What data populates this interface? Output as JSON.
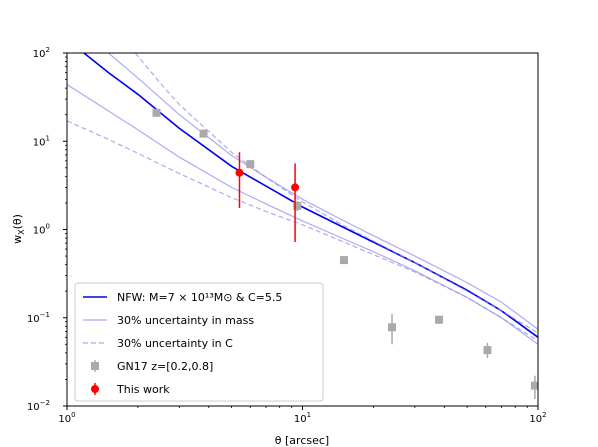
{
  "chart_data": {
    "type": "line",
    "scale": {
      "x": "log",
      "y": "log"
    },
    "xlabel": "θ [arcsec]",
    "ylabel": "w_X(θ)",
    "xlim": [
      1,
      100
    ],
    "ylim": [
      0.01,
      100
    ],
    "grid": false,
    "legend_position": "bottom-left",
    "x_ticks": [
      {
        "value": 1,
        "base": "10",
        "exp": "0"
      },
      {
        "value": 10,
        "base": "10",
        "exp": "1"
      },
      {
        "value": 100,
        "base": "10",
        "exp": "2"
      }
    ],
    "y_ticks": [
      {
        "value": 0.01,
        "base": "10",
        "exp": "−2"
      },
      {
        "value": 0.1,
        "base": "10",
        "exp": "−1"
      },
      {
        "value": 1,
        "base": "10",
        "exp": "0"
      },
      {
        "value": 10,
        "base": "10",
        "exp": "1"
      },
      {
        "value": 100,
        "base": "10",
        "exp": "2"
      }
    ],
    "series": [
      {
        "name": "NFW: M=7 × 10¹³M⊙ & C=5.5",
        "kind": "line",
        "color": "#0000ee",
        "style": "solid",
        "opacity": 1,
        "x": [
          1.18,
          1.5,
          2,
          3,
          5,
          7,
          10,
          15,
          20,
          30,
          50,
          70,
          100
        ],
        "y": [
          100,
          60,
          34,
          14,
          5.2,
          3.1,
          1.8,
          1.05,
          0.72,
          0.42,
          0.205,
          0.12,
          0.06
        ]
      },
      {
        "name": "30% uncertainty in mass",
        "kind": "line",
        "color": "#9090ee",
        "style": "solid",
        "opacity": 0.75,
        "x": [
          1.5,
          2,
          3,
          5,
          7,
          10,
          15,
          20,
          30,
          50,
          70,
          100
        ],
        "y": [
          100,
          52,
          20,
          6.9,
          3.9,
          2.2,
          1.25,
          0.85,
          0.5,
          0.25,
          0.15,
          0.074
        ]
      },
      {
        "name": "",
        "kind": "line",
        "color": "#9090ee",
        "style": "solid",
        "opacity": 0.75,
        "x": [
          1,
          1.5,
          2,
          3,
          5,
          7,
          10,
          15,
          20,
          30,
          50,
          70,
          100
        ],
        "y": [
          44,
          22,
          13.5,
          6.6,
          3.0,
          1.95,
          1.25,
          0.78,
          0.56,
          0.34,
          0.17,
          0.1,
          0.05
        ]
      },
      {
        "name": "30% uncertainty in C",
        "kind": "line",
        "color": "#9090ee",
        "style": "dashed",
        "opacity": 0.75,
        "x": [
          1.95,
          2.5,
          3,
          5,
          7,
          10,
          15,
          20,
          30,
          50,
          70,
          100
        ],
        "y": [
          100,
          45,
          26,
          7.5,
          3.9,
          2.05,
          1.1,
          0.74,
          0.42,
          0.2,
          0.12,
          0.067
        ]
      },
      {
        "name": "",
        "kind": "line",
        "color": "#9090ee",
        "style": "dashed",
        "opacity": 0.75,
        "x": [
          1,
          1.5,
          2,
          3,
          5,
          7,
          10,
          15,
          20,
          30,
          50,
          70,
          100
        ],
        "y": [
          17,
          10.5,
          7.3,
          4.3,
          2.3,
          1.6,
          1.13,
          0.72,
          0.52,
          0.33,
          0.17,
          0.1,
          0.055
        ]
      },
      {
        "name": "GN17 z=[0.2,0.8]",
        "kind": "errorbar",
        "marker": "square",
        "color": "#aaaaaa",
        "points": [
          {
            "x": 2.4,
            "y": 21,
            "ylo": 19.5,
            "yhi": 22.5
          },
          {
            "x": 3.8,
            "y": 12.2,
            "ylo": 11.4,
            "yhi": 13.0
          },
          {
            "x": 6.0,
            "y": 5.5,
            "ylo": 5.0,
            "yhi": 6.1
          },
          {
            "x": 9.5,
            "y": 1.85,
            "ylo": 1.62,
            "yhi": 2.1
          },
          {
            "x": 15,
            "y": 0.45,
            "ylo": 0.42,
            "yhi": 0.48
          },
          {
            "x": 24,
            "y": 0.078,
            "ylo": 0.05,
            "yhi": 0.11
          },
          {
            "x": 38,
            "y": 0.095,
            "ylo": 0.085,
            "yhi": 0.105
          },
          {
            "x": 61,
            "y": 0.043,
            "ylo": 0.035,
            "yhi": 0.052
          },
          {
            "x": 97,
            "y": 0.017,
            "ylo": 0.012,
            "yhi": 0.022
          }
        ]
      },
      {
        "name": "This work",
        "kind": "errorbar",
        "marker": "circle",
        "color": "#ff0000",
        "points": [
          {
            "x": 5.4,
            "y": 4.4,
            "ylo": 1.75,
            "yhi": 7.5
          },
          {
            "x": 9.3,
            "y": 3.0,
            "ylo": 0.72,
            "yhi": 5.6
          }
        ]
      }
    ],
    "legend": [
      {
        "label": "NFW: M=7 × 10¹³M⊙ & C=5.5",
        "kind": "line",
        "color": "#0000ee",
        "style": "solid"
      },
      {
        "label": "30% uncertainty in mass",
        "kind": "line",
        "color": "#9090ee",
        "style": "solid"
      },
      {
        "label": "30% uncertainty in C",
        "kind": "line",
        "color": "#9090ee",
        "style": "dashed"
      },
      {
        "label": "GN17 z=[0.2,0.8]",
        "kind": "errorbar",
        "marker": "square",
        "color": "#aaaaaa"
      },
      {
        "label": "This work",
        "kind": "errorbar",
        "marker": "circle",
        "color": "#ff0000"
      }
    ]
  }
}
